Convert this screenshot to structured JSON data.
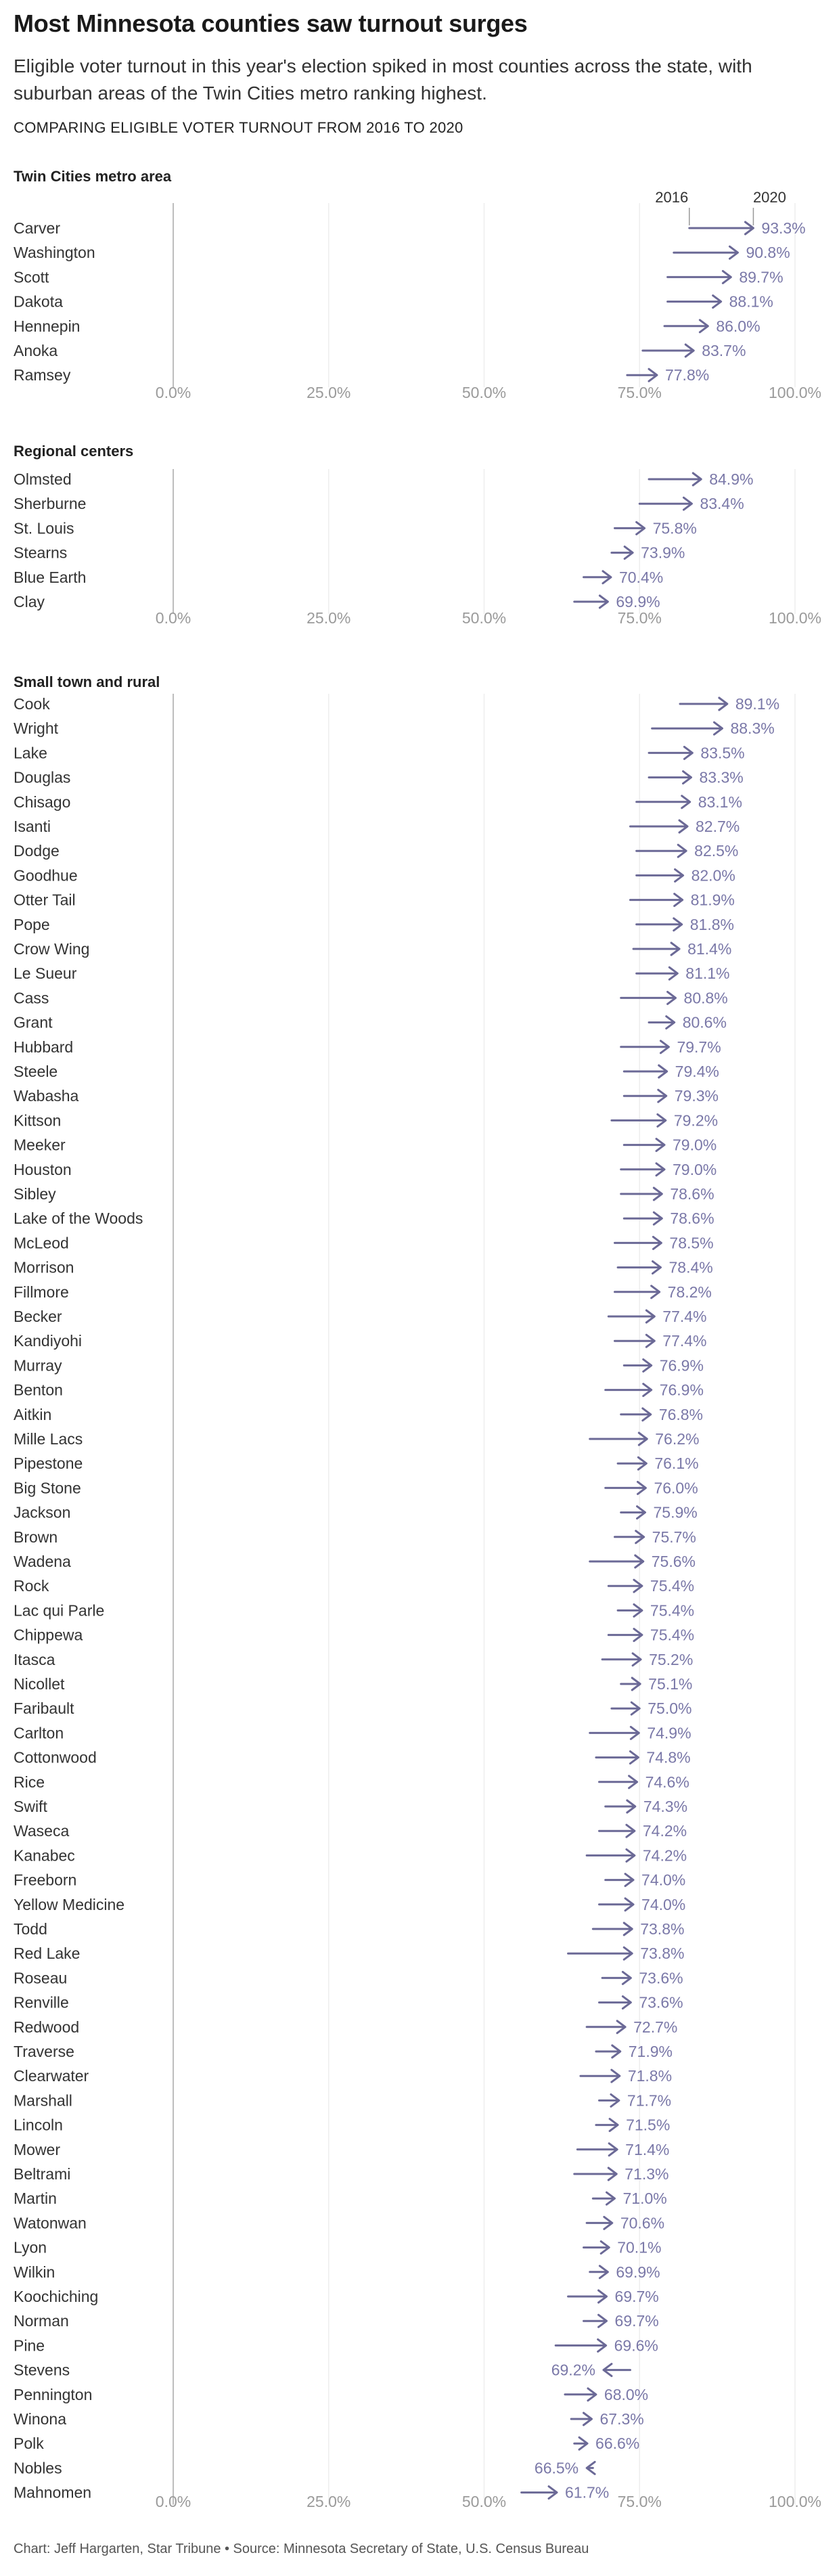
{
  "title": "Most Minnesota counties saw turnout surges",
  "subtitle": "Eligible voter turnout in this year's election spiked in most counties across the state, with suburban areas of the Twin Cities metro ranking highest.",
  "kicker": "COMPARING ELIGIBLE VOTER TURNOUT FROM 2016 TO 2020",
  "footer": "Chart: Jeff Hargarten, Star Tribune • Source: Minnesota Secretary of State, U.S. Census Bureau",
  "legend": {
    "year_start": "2016",
    "year_end": "2020"
  },
  "colors": {
    "arrow": "#6b6996",
    "value_text": "#7a78a8",
    "grid": "#eeeeee",
    "axis_line": "#bdbdbd",
    "label_text": "#333333"
  },
  "chart_data": {
    "type": "arrow-range",
    "x_domain": [
      0,
      100
    ],
    "x_ticks": [
      "0.0%",
      "25.0%",
      "50.0%",
      "75.0%",
      "100.0%"
    ],
    "x_tick_values": [
      0,
      25,
      50,
      75,
      100
    ],
    "panels": [
      {
        "title": "Twin Cities metro area",
        "rows": [
          {
            "county": "Carver",
            "y2016": 83.0,
            "y2020": 93.3,
            "label": "93.3%"
          },
          {
            "county": "Washington",
            "y2016": 80.5,
            "y2020": 90.8,
            "label": "90.8%"
          },
          {
            "county": "Scott",
            "y2016": 79.5,
            "y2020": 89.7,
            "label": "89.7%"
          },
          {
            "county": "Dakota",
            "y2016": 79.5,
            "y2020": 88.1,
            "label": "88.1%"
          },
          {
            "county": "Hennepin",
            "y2016": 79.0,
            "y2020": 86.0,
            "label": "86.0%"
          },
          {
            "county": "Anoka",
            "y2016": 75.5,
            "y2020": 83.7,
            "label": "83.7%"
          },
          {
            "county": "Ramsey",
            "y2016": 73.0,
            "y2020": 77.8,
            "label": "77.8%"
          }
        ]
      },
      {
        "title": "Regional centers",
        "rows": [
          {
            "county": "Olmsted",
            "y2016": 76.5,
            "y2020": 84.9,
            "label": "84.9%"
          },
          {
            "county": "Sherburne",
            "y2016": 75.0,
            "y2020": 83.4,
            "label": "83.4%"
          },
          {
            "county": "St. Louis",
            "y2016": 71.0,
            "y2020": 75.8,
            "label": "75.8%"
          },
          {
            "county": "Stearns",
            "y2016": 70.5,
            "y2020": 73.9,
            "label": "73.9%"
          },
          {
            "county": "Blue Earth",
            "y2016": 66.0,
            "y2020": 70.4,
            "label": "70.4%"
          },
          {
            "county": "Clay",
            "y2016": 64.5,
            "y2020": 69.9,
            "label": "69.9%"
          }
        ]
      },
      {
        "title": "Small town and rural",
        "rows": [
          {
            "county": "Cook",
            "y2016": 81.5,
            "y2020": 89.1,
            "label": "89.1%"
          },
          {
            "county": "Wright",
            "y2016": 77.0,
            "y2020": 88.3,
            "label": "88.3%"
          },
          {
            "county": "Lake",
            "y2016": 76.5,
            "y2020": 83.5,
            "label": "83.5%"
          },
          {
            "county": "Douglas",
            "y2016": 76.5,
            "y2020": 83.3,
            "label": "83.3%"
          },
          {
            "county": "Chisago",
            "y2016": 74.5,
            "y2020": 83.1,
            "label": "83.1%"
          },
          {
            "county": "Isanti",
            "y2016": 73.5,
            "y2020": 82.7,
            "label": "82.7%"
          },
          {
            "county": "Dodge",
            "y2016": 74.5,
            "y2020": 82.5,
            "label": "82.5%"
          },
          {
            "county": "Goodhue",
            "y2016": 74.5,
            "y2020": 82.0,
            "label": "82.0%"
          },
          {
            "county": "Otter Tail",
            "y2016": 73.5,
            "y2020": 81.9,
            "label": "81.9%"
          },
          {
            "county": "Pope",
            "y2016": 74.5,
            "y2020": 81.8,
            "label": "81.8%"
          },
          {
            "county": "Crow Wing",
            "y2016": 74.0,
            "y2020": 81.4,
            "label": "81.4%"
          },
          {
            "county": "Le Sueur",
            "y2016": 74.5,
            "y2020": 81.1,
            "label": "81.1%"
          },
          {
            "county": "Cass",
            "y2016": 72.0,
            "y2020": 80.8,
            "label": "80.8%"
          },
          {
            "county": "Grant",
            "y2016": 76.5,
            "y2020": 80.6,
            "label": "80.6%"
          },
          {
            "county": "Hubbard",
            "y2016": 72.0,
            "y2020": 79.7,
            "label": "79.7%"
          },
          {
            "county": "Steele",
            "y2016": 72.5,
            "y2020": 79.4,
            "label": "79.4%"
          },
          {
            "county": "Wabasha",
            "y2016": 72.5,
            "y2020": 79.3,
            "label": "79.3%"
          },
          {
            "county": "Kittson",
            "y2016": 70.5,
            "y2020": 79.2,
            "label": "79.2%"
          },
          {
            "county": "Meeker",
            "y2016": 72.5,
            "y2020": 79.0,
            "label": "79.0%"
          },
          {
            "county": "Houston",
            "y2016": 72.0,
            "y2020": 79.0,
            "label": "79.0%"
          },
          {
            "county": "Sibley",
            "y2016": 72.0,
            "y2020": 78.6,
            "label": "78.6%"
          },
          {
            "county": "Lake of the Woods",
            "y2016": 72.5,
            "y2020": 78.6,
            "label": "78.6%"
          },
          {
            "county": "McLeod",
            "y2016": 71.0,
            "y2020": 78.5,
            "label": "78.5%"
          },
          {
            "county": "Morrison",
            "y2016": 71.5,
            "y2020": 78.4,
            "label": "78.4%"
          },
          {
            "county": "Fillmore",
            "y2016": 71.0,
            "y2020": 78.2,
            "label": "78.2%"
          },
          {
            "county": "Becker",
            "y2016": 70.0,
            "y2020": 77.4,
            "label": "77.4%"
          },
          {
            "county": "Kandiyohi",
            "y2016": 71.0,
            "y2020": 77.4,
            "label": "77.4%"
          },
          {
            "county": "Murray",
            "y2016": 72.5,
            "y2020": 76.9,
            "label": "76.9%"
          },
          {
            "county": "Benton",
            "y2016": 69.5,
            "y2020": 76.9,
            "label": "76.9%"
          },
          {
            "county": "Aitkin",
            "y2016": 72.0,
            "y2020": 76.8,
            "label": "76.8%"
          },
          {
            "county": "Mille Lacs",
            "y2016": 67.0,
            "y2020": 76.2,
            "label": "76.2%"
          },
          {
            "county": "Pipestone",
            "y2016": 71.5,
            "y2020": 76.1,
            "label": "76.1%"
          },
          {
            "county": "Big Stone",
            "y2016": 69.5,
            "y2020": 76.0,
            "label": "76.0%"
          },
          {
            "county": "Jackson",
            "y2016": 72.0,
            "y2020": 75.9,
            "label": "75.9%"
          },
          {
            "county": "Brown",
            "y2016": 71.0,
            "y2020": 75.7,
            "label": "75.7%"
          },
          {
            "county": "Wadena",
            "y2016": 67.0,
            "y2020": 75.6,
            "label": "75.6%"
          },
          {
            "county": "Rock",
            "y2016": 70.0,
            "y2020": 75.4,
            "label": "75.4%"
          },
          {
            "county": "Lac qui Parle",
            "y2016": 71.5,
            "y2020": 75.4,
            "label": "75.4%"
          },
          {
            "county": "Chippewa",
            "y2016": 70.0,
            "y2020": 75.4,
            "label": "75.4%"
          },
          {
            "county": "Itasca",
            "y2016": 69.0,
            "y2020": 75.2,
            "label": "75.2%"
          },
          {
            "county": "Nicollet",
            "y2016": 72.0,
            "y2020": 75.1,
            "label": "75.1%"
          },
          {
            "county": "Faribault",
            "y2016": 70.5,
            "y2020": 75.0,
            "label": "75.0%"
          },
          {
            "county": "Carlton",
            "y2016": 67.0,
            "y2020": 74.9,
            "label": "74.9%"
          },
          {
            "county": "Cottonwood",
            "y2016": 68.0,
            "y2020": 74.8,
            "label": "74.8%"
          },
          {
            "county": "Rice",
            "y2016": 68.5,
            "y2020": 74.6,
            "label": "74.6%"
          },
          {
            "county": "Swift",
            "y2016": 69.5,
            "y2020": 74.3,
            "label": "74.3%"
          },
          {
            "county": "Waseca",
            "y2016": 68.5,
            "y2020": 74.2,
            "label": "74.2%"
          },
          {
            "county": "Kanabec",
            "y2016": 66.5,
            "y2020": 74.2,
            "label": "74.2%"
          },
          {
            "county": "Freeborn",
            "y2016": 69.5,
            "y2020": 74.0,
            "label": "74.0%"
          },
          {
            "county": "Yellow Medicine",
            "y2016": 68.5,
            "y2020": 74.0,
            "label": "74.0%"
          },
          {
            "county": "Todd",
            "y2016": 67.5,
            "y2020": 73.8,
            "label": "73.8%"
          },
          {
            "county": "Red Lake",
            "y2016": 63.5,
            "y2020": 73.8,
            "label": "73.8%"
          },
          {
            "county": "Roseau",
            "y2016": 69.0,
            "y2020": 73.6,
            "label": "73.6%"
          },
          {
            "county": "Renville",
            "y2016": 68.5,
            "y2020": 73.6,
            "label": "73.6%"
          },
          {
            "county": "Redwood",
            "y2016": 66.5,
            "y2020": 72.7,
            "label": "72.7%"
          },
          {
            "county": "Traverse",
            "y2016": 68.0,
            "y2020": 71.9,
            "label": "71.9%"
          },
          {
            "county": "Clearwater",
            "y2016": 65.5,
            "y2020": 71.8,
            "label": "71.8%"
          },
          {
            "county": "Marshall",
            "y2016": 68.5,
            "y2020": 71.7,
            "label": "71.7%"
          },
          {
            "county": "Lincoln",
            "y2016": 68.0,
            "y2020": 71.5,
            "label": "71.5%"
          },
          {
            "county": "Mower",
            "y2016": 65.0,
            "y2020": 71.4,
            "label": "71.4%"
          },
          {
            "county": "Beltrami",
            "y2016": 64.5,
            "y2020": 71.3,
            "label": "71.3%"
          },
          {
            "county": "Martin",
            "y2016": 67.5,
            "y2020": 71.0,
            "label": "71.0%"
          },
          {
            "county": "Watonwan",
            "y2016": 66.5,
            "y2020": 70.6,
            "label": "70.6%"
          },
          {
            "county": "Lyon",
            "y2016": 66.0,
            "y2020": 70.1,
            "label": "70.1%"
          },
          {
            "county": "Wilkin",
            "y2016": 67.0,
            "y2020": 69.9,
            "label": "69.9%"
          },
          {
            "county": "Koochiching",
            "y2016": 63.5,
            "y2020": 69.7,
            "label": "69.7%"
          },
          {
            "county": "Norman",
            "y2016": 66.0,
            "y2020": 69.7,
            "label": "69.7%"
          },
          {
            "county": "Pine",
            "y2016": 61.5,
            "y2020": 69.6,
            "label": "69.6%"
          },
          {
            "county": "Stevens",
            "y2016": 73.5,
            "y2020": 69.2,
            "label": "69.2%"
          },
          {
            "county": "Pennington",
            "y2016": 63.0,
            "y2020": 68.0,
            "label": "68.0%"
          },
          {
            "county": "Winona",
            "y2016": 64.0,
            "y2020": 67.3,
            "label": "67.3%"
          },
          {
            "county": "Polk",
            "y2016": 64.5,
            "y2020": 66.6,
            "label": "66.6%"
          },
          {
            "county": "Nobles",
            "y2016": 67.5,
            "y2020": 66.5,
            "label": "66.5%"
          },
          {
            "county": "Mahnomen",
            "y2016": 56.0,
            "y2020": 61.7,
            "label": "61.7%"
          }
        ]
      }
    ]
  }
}
